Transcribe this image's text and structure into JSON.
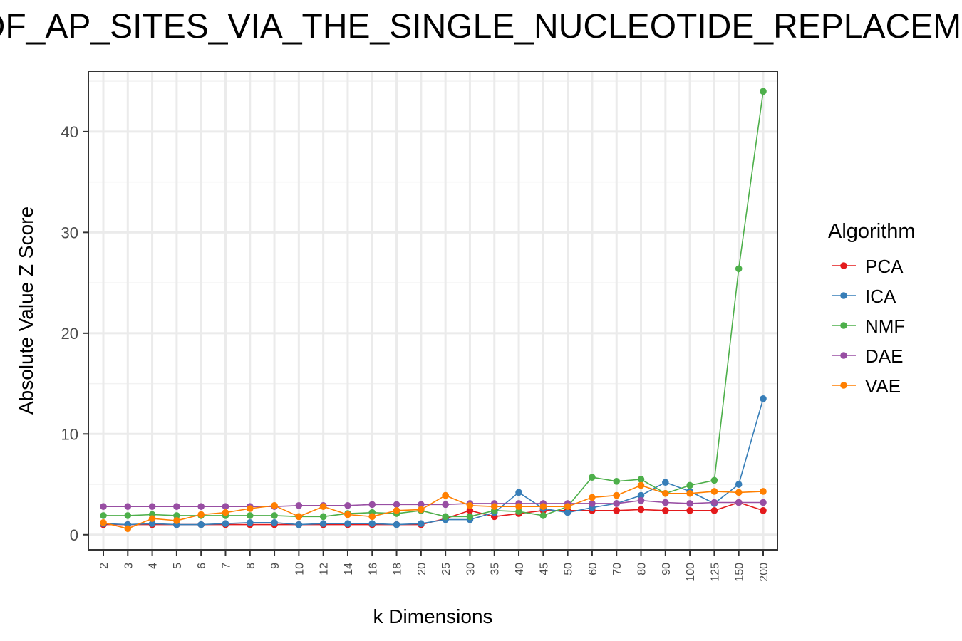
{
  "chart_data": {
    "type": "line",
    "title": "OF_AP_SITES_VIA_THE_SINGLE_NUCLEOTIDE_REPLACEMENT",
    "xlabel": "k Dimensions",
    "ylabel": "Absolute Value Z Score",
    "categories": [
      "2",
      "3",
      "4",
      "5",
      "6",
      "7",
      "8",
      "9",
      "10",
      "12",
      "14",
      "16",
      "18",
      "20",
      "25",
      "30",
      "35",
      "40",
      "45",
      "50",
      "60",
      "70",
      "80",
      "90",
      "100",
      "125",
      "150",
      "200"
    ],
    "ylim": [
      -1.5,
      46
    ],
    "yticks": [
      0,
      10,
      20,
      30,
      40
    ],
    "grid": true,
    "legend_title": "Algorithm",
    "legend_position": "right",
    "series": [
      {
        "name": "PCA",
        "color": "#E41A1C",
        "values": [
          1.0,
          1.0,
          1.0,
          1.0,
          1.0,
          1.0,
          1.0,
          1.0,
          1.0,
          1.0,
          1.0,
          1.0,
          1.0,
          1.0,
          1.6,
          2.4,
          1.8,
          2.1,
          2.4,
          2.4,
          2.4,
          2.4,
          2.5,
          2.4,
          2.4,
          2.4,
          3.2,
          2.4
        ]
      },
      {
        "name": "ICA",
        "color": "#377EB8",
        "values": [
          1.1,
          1.0,
          1.1,
          1.0,
          1.0,
          1.1,
          1.2,
          1.2,
          1.0,
          1.1,
          1.1,
          1.1,
          1.0,
          1.1,
          1.5,
          1.5,
          2.2,
          4.2,
          2.6,
          2.2,
          2.7,
          3.1,
          3.9,
          5.2,
          4.3,
          3.1,
          5.0,
          13.5
        ]
      },
      {
        "name": "NMF",
        "color": "#4DAF4A",
        "values": [
          1.9,
          1.9,
          2.0,
          1.9,
          1.9,
          1.9,
          1.9,
          1.9,
          1.8,
          1.8,
          2.1,
          2.2,
          2.1,
          2.4,
          1.8,
          1.8,
          2.4,
          2.3,
          1.9,
          2.8,
          5.7,
          5.3,
          5.5,
          4.1,
          4.9,
          5.4,
          26.4,
          44.0
        ]
      },
      {
        "name": "DAE",
        "color": "#984EA3",
        "values": [
          2.8,
          2.8,
          2.8,
          2.8,
          2.8,
          2.8,
          2.8,
          2.8,
          2.9,
          2.9,
          2.9,
          3.0,
          3.0,
          3.0,
          3.0,
          3.1,
          3.1,
          3.1,
          3.1,
          3.1,
          3.1,
          3.1,
          3.4,
          3.2,
          3.1,
          3.2,
          3.2,
          3.2
        ]
      },
      {
        "name": "VAE",
        "color": "#FF7F00",
        "values": [
          1.2,
          0.6,
          1.6,
          1.4,
          2.0,
          2.2,
          2.6,
          2.9,
          1.8,
          2.8,
          2.0,
          1.8,
          2.4,
          2.5,
          3.9,
          2.9,
          2.8,
          2.8,
          2.8,
          2.8,
          3.7,
          3.9,
          4.9,
          4.1,
          4.1,
          4.3,
          4.2,
          4.3
        ]
      }
    ]
  }
}
